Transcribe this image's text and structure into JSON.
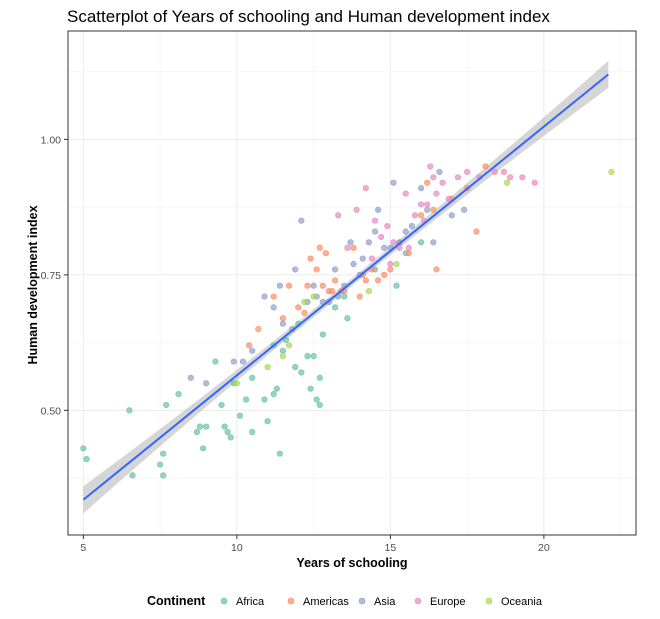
{
  "chart_data": {
    "type": "scatter",
    "title": "Scatterplot of Years of schooling and Human development index",
    "xlabel": "Years of schooling",
    "ylabel": "Human development index",
    "xlim": [
      4.5,
      23.0
    ],
    "ylim": [
      0.27,
      1.2
    ],
    "x_ticks": [
      5,
      10,
      15,
      20
    ],
    "x_tick_labels": [
      "5",
      "10",
      "15",
      "20"
    ],
    "y_ticks": [
      0.5,
      0.75,
      1.0
    ],
    "y_tick_labels": [
      "0.50",
      "0.75",
      "1.00"
    ],
    "grid": true,
    "legend": {
      "title": "Continent",
      "position": "bottom",
      "entries": [
        "Africa",
        "Americas",
        "Asia",
        "Europe",
        "Oceania"
      ]
    },
    "colors": {
      "Africa": "#66c2a5",
      "Americas": "#fc8d62",
      "Asia": "#8da0cb",
      "Europe": "#e78ac3",
      "Oceania": "#a6d854",
      "trend": "#3366ff",
      "band": "#999999"
    },
    "trend_line": {
      "x": [
        5.0,
        22.1
      ],
      "y": [
        0.335,
        1.12
      ],
      "band_halfwidth_ends": 0.025,
      "band_halfwidth_center": 0.007
    },
    "series": [
      {
        "name": "Africa",
        "points": [
          [
            5.0,
            0.43
          ],
          [
            5.1,
            0.41
          ],
          [
            6.5,
            0.5
          ],
          [
            6.6,
            0.38
          ],
          [
            7.5,
            0.4
          ],
          [
            7.6,
            0.38
          ],
          [
            7.7,
            0.51
          ],
          [
            7.6,
            0.42
          ],
          [
            8.1,
            0.53
          ],
          [
            8.7,
            0.46
          ],
          [
            8.8,
            0.47
          ],
          [
            8.9,
            0.43
          ],
          [
            9.0,
            0.47
          ],
          [
            9.3,
            0.59
          ],
          [
            9.5,
            0.51
          ],
          [
            9.6,
            0.47
          ],
          [
            9.7,
            0.46
          ],
          [
            9.8,
            0.45
          ],
          [
            9.9,
            0.55
          ],
          [
            10.1,
            0.49
          ],
          [
            10.3,
            0.52
          ],
          [
            10.5,
            0.46
          ],
          [
            10.5,
            0.56
          ],
          [
            10.9,
            0.52
          ],
          [
            11.0,
            0.48
          ],
          [
            11.2,
            0.53
          ],
          [
            11.3,
            0.54
          ],
          [
            11.4,
            0.42
          ],
          [
            11.5,
            0.61
          ],
          [
            11.6,
            0.63
          ],
          [
            11.9,
            0.58
          ],
          [
            12.0,
            0.66
          ],
          [
            12.1,
            0.57
          ],
          [
            12.3,
            0.6
          ],
          [
            12.4,
            0.54
          ],
          [
            12.5,
            0.6
          ],
          [
            12.6,
            0.52
          ],
          [
            12.7,
            0.51
          ],
          [
            12.7,
            0.56
          ],
          [
            13.2,
            0.69
          ],
          [
            13.5,
            0.71
          ],
          [
            13.6,
            0.67
          ],
          [
            14.5,
            0.76
          ],
          [
            15.2,
            0.73
          ],
          [
            15.5,
            0.79
          ],
          [
            16.0,
            0.81
          ],
          [
            11.2,
            0.62
          ],
          [
            12.8,
            0.64
          ]
        ]
      },
      {
        "name": "Americas",
        "points": [
          [
            10.4,
            0.62
          ],
          [
            10.7,
            0.65
          ],
          [
            11.2,
            0.71
          ],
          [
            11.5,
            0.67
          ],
          [
            11.7,
            0.73
          ],
          [
            12.0,
            0.69
          ],
          [
            12.3,
            0.73
          ],
          [
            12.4,
            0.78
          ],
          [
            12.6,
            0.76
          ],
          [
            12.7,
            0.8
          ],
          [
            12.8,
            0.73
          ],
          [
            12.9,
            0.79
          ],
          [
            13.0,
            0.72
          ],
          [
            13.1,
            0.72
          ],
          [
            13.2,
            0.74
          ],
          [
            13.4,
            0.72
          ],
          [
            13.5,
            0.72
          ],
          [
            13.8,
            0.8
          ],
          [
            14.0,
            0.71
          ],
          [
            14.2,
            0.74
          ],
          [
            14.4,
            0.76
          ],
          [
            14.6,
            0.74
          ],
          [
            14.8,
            0.75
          ],
          [
            15.0,
            0.76
          ],
          [
            15.3,
            0.81
          ],
          [
            15.6,
            0.79
          ],
          [
            16.0,
            0.86
          ],
          [
            16.2,
            0.92
          ],
          [
            16.4,
            0.87
          ],
          [
            16.5,
            0.76
          ],
          [
            17.0,
            0.89
          ],
          [
            17.5,
            0.91
          ],
          [
            17.8,
            0.83
          ],
          [
            18.1,
            0.95
          ],
          [
            14.1,
            0.75
          ],
          [
            12.2,
            0.68
          ]
        ]
      },
      {
        "name": "Asia",
        "points": [
          [
            8.5,
            0.56
          ],
          [
            9.0,
            0.55
          ],
          [
            9.9,
            0.59
          ],
          [
            10.2,
            0.59
          ],
          [
            10.5,
            0.61
          ],
          [
            10.9,
            0.71
          ],
          [
            11.2,
            0.69
          ],
          [
            11.4,
            0.73
          ],
          [
            11.5,
            0.66
          ],
          [
            11.9,
            0.76
          ],
          [
            12.1,
            0.85
          ],
          [
            12.3,
            0.7
          ],
          [
            12.5,
            0.73
          ],
          [
            12.8,
            0.7
          ],
          [
            13.0,
            0.7
          ],
          [
            13.2,
            0.76
          ],
          [
            13.5,
            0.73
          ],
          [
            13.7,
            0.81
          ],
          [
            13.8,
            0.77
          ],
          [
            14.0,
            0.75
          ],
          [
            14.1,
            0.78
          ],
          [
            14.3,
            0.81
          ],
          [
            14.5,
            0.83
          ],
          [
            14.6,
            0.87
          ],
          [
            14.8,
            0.8
          ],
          [
            15.0,
            0.8
          ],
          [
            15.1,
            0.92
          ],
          [
            15.3,
            0.81
          ],
          [
            15.5,
            0.83
          ],
          [
            15.7,
            0.84
          ],
          [
            16.0,
            0.91
          ],
          [
            16.2,
            0.87
          ],
          [
            16.4,
            0.81
          ],
          [
            16.6,
            0.94
          ],
          [
            17.0,
            0.86
          ],
          [
            17.4,
            0.87
          ],
          [
            12.6,
            0.71
          ],
          [
            13.3,
            0.71
          ],
          [
            11.8,
            0.65
          ]
        ]
      },
      {
        "name": "Europe",
        "points": [
          [
            13.3,
            0.86
          ],
          [
            13.6,
            0.8
          ],
          [
            13.9,
            0.87
          ],
          [
            14.2,
            0.91
          ],
          [
            14.4,
            0.78
          ],
          [
            14.5,
            0.85
          ],
          [
            14.7,
            0.82
          ],
          [
            14.9,
            0.84
          ],
          [
            15.0,
            0.77
          ],
          [
            15.1,
            0.81
          ],
          [
            15.3,
            0.8
          ],
          [
            15.5,
            0.9
          ],
          [
            15.8,
            0.86
          ],
          [
            16.0,
            0.88
          ],
          [
            16.1,
            0.85
          ],
          [
            16.3,
            0.95
          ],
          [
            16.4,
            0.93
          ],
          [
            16.5,
            0.9
          ],
          [
            16.7,
            0.92
          ],
          [
            16.9,
            0.89
          ],
          [
            17.2,
            0.93
          ],
          [
            17.5,
            0.94
          ],
          [
            17.9,
            0.93
          ],
          [
            18.4,
            0.94
          ],
          [
            18.7,
            0.94
          ],
          [
            18.9,
            0.93
          ],
          [
            19.3,
            0.93
          ],
          [
            19.7,
            0.92
          ],
          [
            15.6,
            0.8
          ],
          [
            16.2,
            0.88
          ]
        ]
      },
      {
        "name": "Oceania",
        "points": [
          [
            10.0,
            0.55
          ],
          [
            11.0,
            0.58
          ],
          [
            11.5,
            0.6
          ],
          [
            11.7,
            0.62
          ],
          [
            12.2,
            0.7
          ],
          [
            12.5,
            0.71
          ],
          [
            14.3,
            0.72
          ],
          [
            15.2,
            0.77
          ],
          [
            18.8,
            0.92
          ],
          [
            22.2,
            0.94
          ]
        ]
      }
    ]
  }
}
